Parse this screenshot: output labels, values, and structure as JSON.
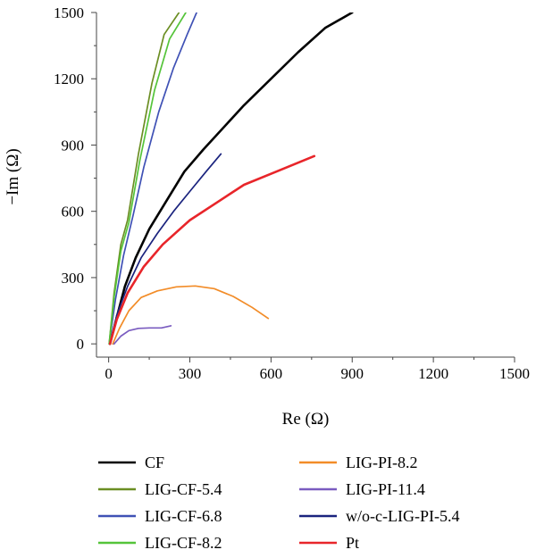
{
  "chart_data": {
    "type": "line",
    "xlabel": "Re (Ω)",
    "ylabel": "−Im (Ω)",
    "xlim": [
      -45,
      1500
    ],
    "ylim": [
      -60,
      1500
    ],
    "xticks": [
      0,
      300,
      600,
      900,
      1200,
      1500
    ],
    "yticks": [
      0,
      300,
      600,
      900,
      1200,
      1500
    ],
    "xtick_labels": [
      "0",
      "300",
      "600",
      "900",
      "1200",
      "1500"
    ],
    "ytick_labels": [
      "0",
      "300",
      "600",
      "900",
      "1200",
      "1500"
    ],
    "grid": false,
    "legend_position": "bottom",
    "series": [
      {
        "name": "CF",
        "color": "#000000",
        "x": [
          5,
          30,
          60,
          100,
          150,
          210,
          280,
          350,
          500,
          700,
          800,
          900
        ],
        "y": [
          0,
          120,
          260,
          390,
          520,
          640,
          780,
          880,
          1080,
          1320,
          1430,
          1500
        ]
      },
      {
        "name": "LIG-CF-5.4",
        "color": "#6B8E23",
        "x": [
          2,
          20,
          45,
          70,
          110,
          160,
          205,
          260
        ],
        "y": [
          0,
          230,
          450,
          560,
          860,
          1180,
          1400,
          1500
        ]
      },
      {
        "name": "LIG-CF-6.8",
        "color": "#3F51B5",
        "x": [
          2,
          25,
          55,
          90,
          130,
          185,
          240,
          290,
          325
        ],
        "y": [
          0,
          200,
          400,
          580,
          800,
          1050,
          1250,
          1400,
          1500
        ]
      },
      {
        "name": "LIG-CF-8.2",
        "color": "#55C43A",
        "x": [
          2,
          20,
          45,
          75,
          115,
          170,
          225,
          285
        ],
        "y": [
          0,
          210,
          420,
          550,
          830,
          1150,
          1380,
          1500
        ]
      },
      {
        "name": "LIG-PI-8.2",
        "color": "#F28C28",
        "x": [
          15,
          40,
          75,
          120,
          180,
          250,
          320,
          390,
          460,
          530,
          590
        ],
        "y": [
          0,
          70,
          150,
          210,
          240,
          258,
          262,
          250,
          215,
          165,
          115
        ]
      },
      {
        "name": "LIG-PI-11.4",
        "color": "#7A5CC0",
        "x": [
          20,
          45,
          75,
          110,
          150,
          195,
          230
        ],
        "y": [
          0,
          35,
          60,
          70,
          72,
          72,
          82
        ]
      },
      {
        "name": "w/o-c-LIG-PI-5.4",
        "color": "#1A237E",
        "x": [
          5,
          30,
          70,
          120,
          180,
          240,
          300,
          360,
          415
        ],
        "y": [
          0,
          130,
          260,
          390,
          500,
          600,
          690,
          780,
          860
        ]
      },
      {
        "name": "Pt",
        "color": "#E8252A",
        "x": [
          5,
          30,
          70,
          130,
          200,
          300,
          400,
          500,
          620,
          760
        ],
        "y": [
          0,
          110,
          230,
          350,
          450,
          560,
          640,
          720,
          780,
          850
        ]
      }
    ]
  }
}
